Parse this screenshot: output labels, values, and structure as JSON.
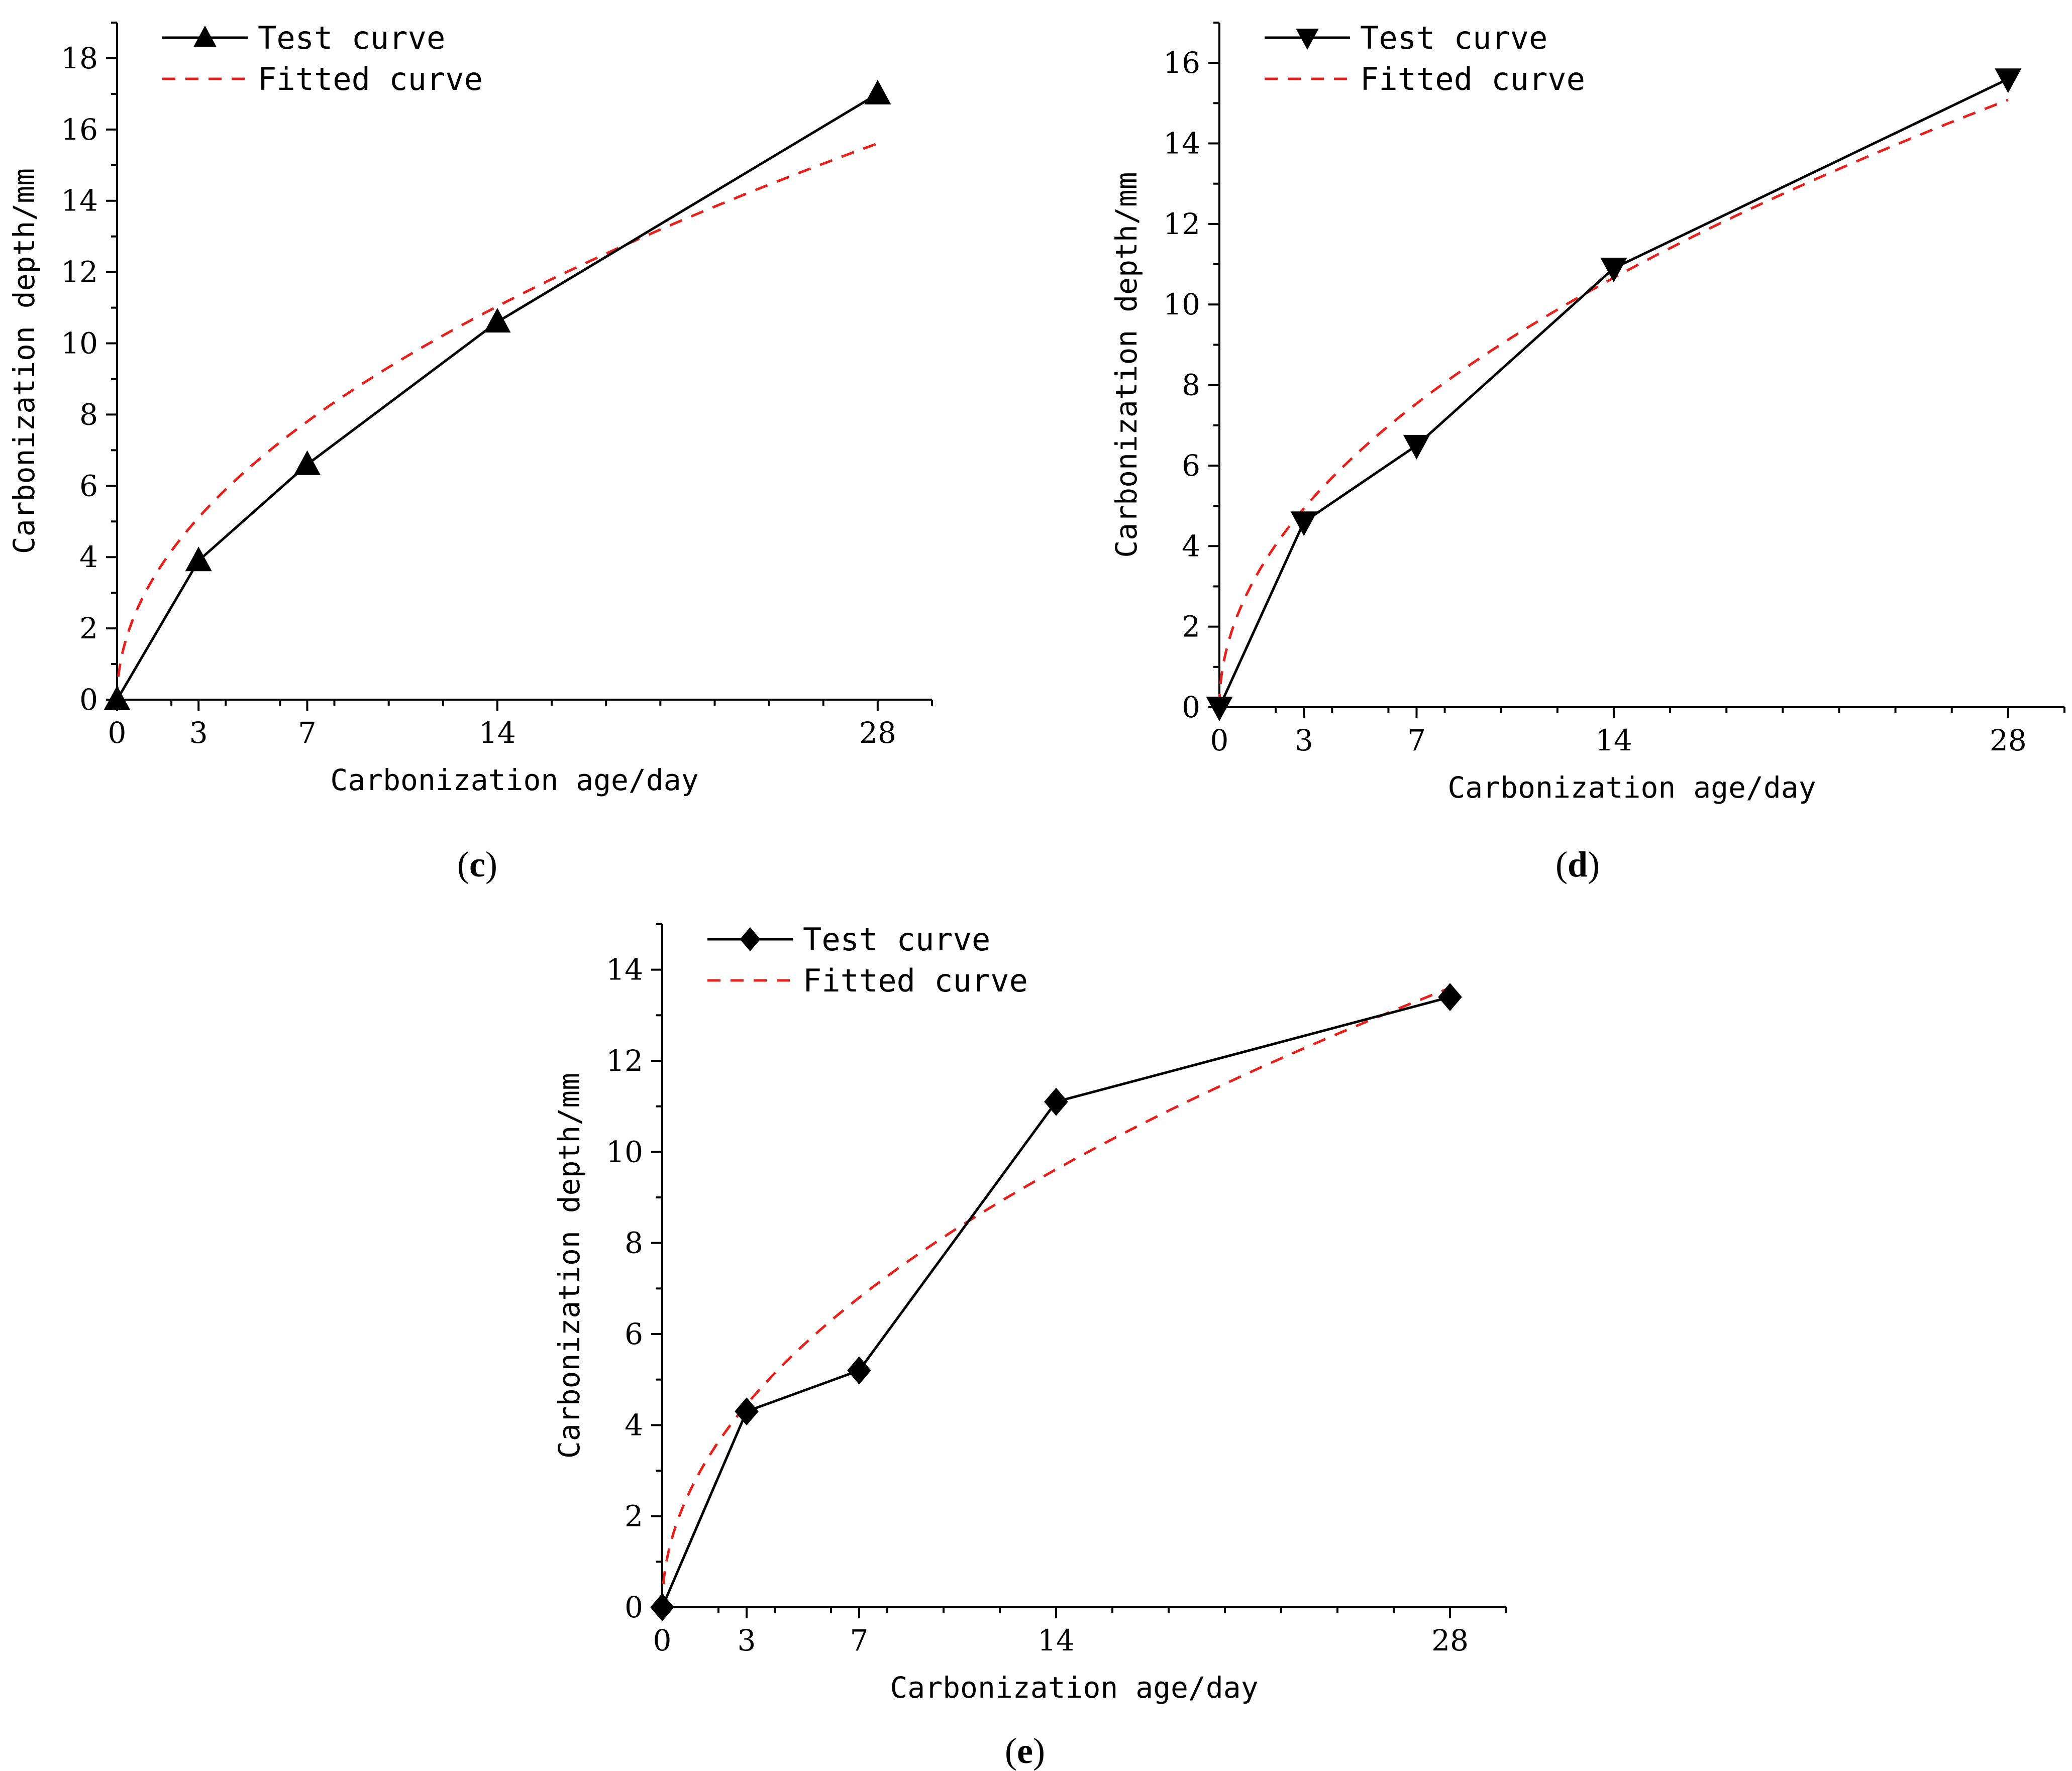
{
  "colors": {
    "test": "#000000",
    "fitted": "#e8201c"
  },
  "chart_data": [
    {
      "type": "line",
      "panel_label": "c",
      "xlabel": "Carbonization age/day",
      "ylabel": "Carbonization depth/mm",
      "xlim": [
        0,
        30
      ],
      "ylim": [
        0,
        19
      ],
      "x_ticks": [
        0,
        3,
        7,
        14,
        28
      ],
      "y_ticks": [
        0,
        2,
        4,
        6,
        8,
        10,
        12,
        14,
        16,
        18
      ],
      "y_minor": 1,
      "legend": "top-left",
      "marker": "triangle-up",
      "fit_coef": 2.95,
      "series": [
        {
          "name": "Test curve",
          "x": [
            0,
            3,
            7,
            14,
            28
          ],
          "y": [
            0,
            3.9,
            6.6,
            10.6,
            17.0
          ]
        },
        {
          "name": "Fitted curve",
          "function": "sqrt"
        }
      ]
    },
    {
      "type": "line",
      "panel_label": "d",
      "xlabel": "Carbonization age/day",
      "ylabel": "Carbonization depth/mm",
      "xlim": [
        0,
        30
      ],
      "ylim": [
        0,
        17
      ],
      "x_ticks": [
        0,
        3,
        7,
        14,
        28
      ],
      "y_ticks": [
        0,
        2,
        4,
        6,
        8,
        10,
        12,
        14,
        16
      ],
      "y_minor": 1,
      "legend": "top-left",
      "marker": "triangle-down",
      "fit_coef": 2.85,
      "series": [
        {
          "name": "Test curve",
          "x": [
            0,
            3,
            7,
            14,
            28
          ],
          "y": [
            0,
            4.6,
            6.5,
            10.9,
            15.6
          ]
        },
        {
          "name": "Fitted curve",
          "function": "sqrt"
        }
      ]
    },
    {
      "type": "line",
      "panel_label": "e",
      "xlabel": "Carbonization age/day",
      "ylabel": "Carbonization depth/mm",
      "xlim": [
        0,
        30
      ],
      "ylim": [
        0,
        15
      ],
      "x_ticks": [
        0,
        3,
        7,
        14,
        28
      ],
      "y_ticks": [
        0,
        2,
        4,
        6,
        8,
        10,
        12,
        14
      ],
      "y_minor": 1,
      "legend": "top-left",
      "marker": "diamond",
      "fit_coef": 2.57,
      "series": [
        {
          "name": "Test curve",
          "x": [
            0,
            3,
            7,
            14,
            28
          ],
          "y": [
            0,
            4.3,
            5.2,
            11.1,
            13.4
          ]
        },
        {
          "name": "Fitted curve",
          "function": "sqrt"
        }
      ]
    }
  ]
}
